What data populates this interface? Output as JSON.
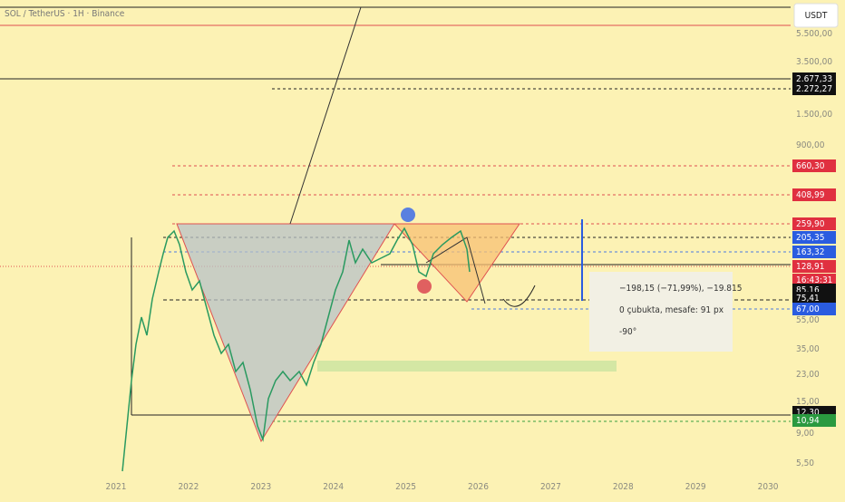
{
  "header": {
    "title": "SOL / TetherUS · 1H · Binance"
  },
  "currency_button": "USDT",
  "price_scale": {
    "labels": [
      "5.500,00",
      "3.500,00",
      "1.500,00",
      "900,00",
      "55,00",
      "35,00",
      "23,00",
      "15,00",
      "9,00",
      "5,50"
    ],
    "badges": [
      "2.677,33",
      "2.272,27",
      "660,30",
      "408,99",
      "259,90",
      "205,35",
      "163,32",
      "128,91",
      "16:43:31",
      "85,16",
      "75,41",
      "67,00",
      "12,30",
      "10,94"
    ]
  },
  "time_axis": {
    "labels": [
      "2021",
      "2022",
      "2023",
      "2024",
      "2025",
      "2026",
      "2027",
      "2028",
      "2029",
      "2030"
    ]
  },
  "measure_tooltip": {
    "lines": [
      "−198,15 (−71,99%), −19.815",
      "0 çubukta, mesafe: 91 px",
      "-90°"
    ]
  }
}
